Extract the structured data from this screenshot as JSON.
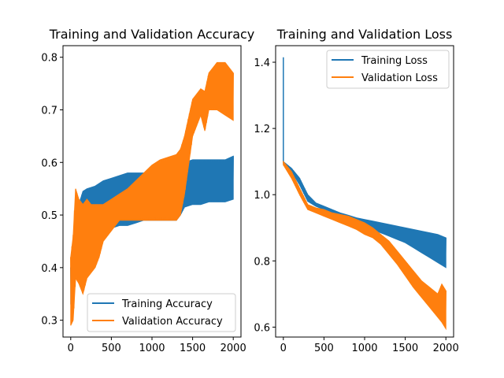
{
  "chart_data": [
    {
      "type": "line",
      "title": "Training and Validation Accuracy",
      "xlabel": "",
      "ylabel": "",
      "xlim": [
        -95,
        2095
      ],
      "ylim": [
        0.268,
        0.822
      ],
      "xticks": [
        0,
        500,
        1000,
        1500,
        2000
      ],
      "yticks": [
        0.3,
        0.4,
        0.5,
        0.6,
        0.7,
        0.8
      ],
      "legend": "lower-right",
      "grid": false,
      "series": [
        {
          "name": "Training Accuracy",
          "color": "#1f77b4",
          "x": [
            0,
            50,
            100,
            150,
            200,
            300,
            400,
            500,
            600,
            700,
            800,
            900,
            1000,
            1100,
            1200,
            1300,
            1350,
            1400,
            1500,
            1600,
            1700,
            1800,
            1900,
            2000
          ],
          "upper": [
            0.4,
            0.46,
            0.52,
            0.545,
            0.55,
            0.555,
            0.565,
            0.57,
            0.575,
            0.58,
            0.58,
            0.58,
            0.58,
            0.58,
            0.58,
            0.58,
            0.59,
            0.6,
            0.605,
            0.605,
            0.605,
            0.605,
            0.605,
            0.612
          ],
          "lower": [
            0.33,
            0.4,
            0.45,
            0.5,
            0.5,
            0.49,
            0.48,
            0.475,
            0.48,
            0.48,
            0.485,
            0.49,
            0.49,
            0.49,
            0.49,
            0.49,
            0.5,
            0.515,
            0.52,
            0.52,
            0.525,
            0.525,
            0.525,
            0.53
          ]
        },
        {
          "name": "Validation Accuracy",
          "color": "#ff7f0e",
          "x": [
            0,
            30,
            60,
            100,
            150,
            200,
            250,
            300,
            350,
            400,
            500,
            600,
            700,
            800,
            900,
            1000,
            1100,
            1200,
            1300,
            1350,
            1400,
            1500,
            1600,
            1650,
            1700,
            1800,
            1900,
            2000
          ],
          "upper": [
            0.42,
            0.46,
            0.55,
            0.53,
            0.52,
            0.53,
            0.52,
            0.52,
            0.52,
            0.52,
            0.53,
            0.54,
            0.55,
            0.565,
            0.58,
            0.595,
            0.605,
            0.61,
            0.615,
            0.625,
            0.65,
            0.72,
            0.74,
            0.735,
            0.77,
            0.79,
            0.79,
            0.77
          ],
          "lower": [
            0.29,
            0.3,
            0.38,
            0.37,
            0.35,
            0.38,
            0.39,
            0.4,
            0.42,
            0.45,
            0.47,
            0.49,
            0.49,
            0.49,
            0.49,
            0.49,
            0.49,
            0.49,
            0.49,
            0.5,
            0.54,
            0.65,
            0.69,
            0.66,
            0.7,
            0.7,
            0.69,
            0.68
          ]
        }
      ]
    },
    {
      "type": "line",
      "title": "Training and Validation Loss",
      "xlabel": "",
      "ylabel": "",
      "xlim": [
        -95,
        2095
      ],
      "ylim": [
        0.57,
        1.45
      ],
      "xticks": [
        0,
        500,
        1000,
        1500,
        2000
      ],
      "yticks": [
        0.6,
        0.8,
        1.0,
        1.2,
        1.4
      ],
      "legend": "upper-right",
      "grid": false,
      "series": [
        {
          "name": "Training Loss",
          "color": "#1f77b4",
          "spike": [
            0,
            1.415
          ],
          "x": [
            0,
            100,
            200,
            300,
            400,
            500,
            600,
            700,
            800,
            900,
            1000,
            1100,
            1200,
            1300,
            1400,
            1500,
            1600,
            1700,
            1800,
            1900,
            2000
          ],
          "upper": [
            1.1,
            1.08,
            1.05,
            1.0,
            0.975,
            0.965,
            0.955,
            0.945,
            0.938,
            0.93,
            0.925,
            0.92,
            0.915,
            0.91,
            0.905,
            0.9,
            0.895,
            0.89,
            0.885,
            0.88,
            0.87
          ],
          "lower": [
            1.09,
            1.07,
            1.03,
            0.98,
            0.965,
            0.955,
            0.945,
            0.935,
            0.925,
            0.915,
            0.905,
            0.895,
            0.885,
            0.875,
            0.865,
            0.855,
            0.84,
            0.825,
            0.81,
            0.795,
            0.78
          ]
        },
        {
          "name": "Validation Loss",
          "color": "#ff7f0e",
          "x": [
            0,
            100,
            200,
            300,
            400,
            500,
            600,
            700,
            800,
            900,
            1000,
            1100,
            1200,
            1300,
            1400,
            1500,
            1600,
            1700,
            1800,
            1900,
            1950,
            2000
          ],
          "upper": [
            1.1,
            1.07,
            1.02,
            0.97,
            0.96,
            0.955,
            0.945,
            0.94,
            0.935,
            0.925,
            0.915,
            0.9,
            0.88,
            0.86,
            0.83,
            0.8,
            0.77,
            0.74,
            0.72,
            0.7,
            0.73,
            0.71
          ],
          "lower": [
            1.09,
            1.05,
            1.0,
            0.955,
            0.945,
            0.935,
            0.925,
            0.915,
            0.905,
            0.895,
            0.88,
            0.87,
            0.85,
            0.82,
            0.79,
            0.755,
            0.72,
            0.69,
            0.66,
            0.63,
            0.615,
            0.595
          ]
        }
      ]
    }
  ]
}
